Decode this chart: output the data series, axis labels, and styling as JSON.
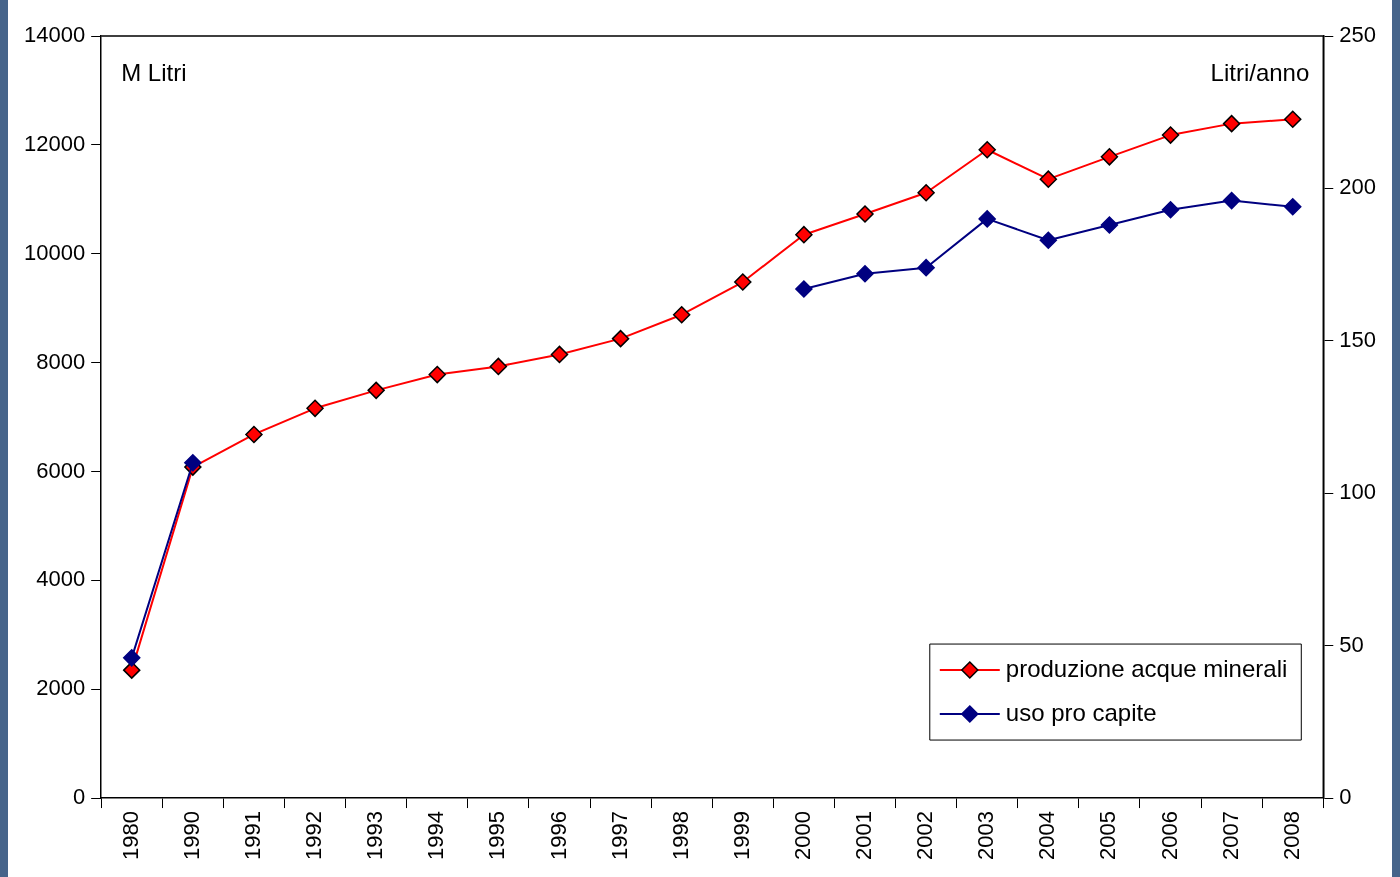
{
  "chart_data": {
    "type": "line",
    "ylabel": "M Litri",
    "y2label": "Litri/anno",
    "categories": [
      "1980",
      "1990",
      "1991",
      "1992",
      "1993",
      "1994",
      "1995",
      "1996",
      "1997",
      "1998",
      "1999",
      "2000",
      "2001",
      "2002",
      "2003",
      "2004",
      "2005",
      "2006",
      "2007",
      "2008"
    ],
    "series": [
      {
        "name": "produzione acque minerali",
        "color": "#ff0000",
        "values": [
          2350,
          6080,
          6680,
          7160,
          7490,
          7780,
          7930,
          8150,
          8440,
          8880,
          9480,
          10350,
          10730,
          11120,
          11910,
          11370,
          11780,
          12180,
          12390,
          12470
        ]
      },
      {
        "name": "uso pro capite",
        "color": "#000080",
        "axis": "y2",
        "values": [
          46,
          110,
          null,
          null,
          null,
          null,
          null,
          null,
          null,
          null,
          null,
          167,
          172,
          174,
          190,
          183,
          188,
          193,
          196,
          194
        ]
      }
    ],
    "ylim": [
      0,
      14000
    ],
    "yticks": [
      0,
      2000,
      4000,
      6000,
      8000,
      10000,
      12000,
      14000
    ],
    "y2lim": [
      0,
      250
    ],
    "y2ticks": [
      0,
      50,
      100,
      150,
      200,
      250
    ],
    "marker": "diamond",
    "legend": "bottom right",
    "grid": false
  }
}
